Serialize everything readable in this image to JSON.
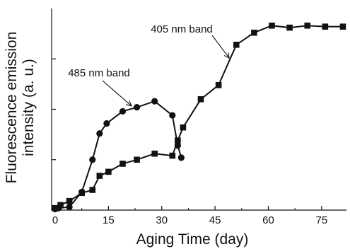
{
  "chart_data": {
    "type": "line",
    "xlabel": "Aging Time (day)",
    "ylabel": "Fluorescence emission intensity (a. u.)",
    "xlim": [
      -1,
      82
    ],
    "ylim": [
      0,
      1
    ],
    "xticks": [
      0,
      15,
      30,
      45,
      60,
      75
    ],
    "y_tick_labels_shown": false,
    "grid": false,
    "series": [
      {
        "name": "485 nm band",
        "marker": "circle",
        "x": [
          0,
          1,
          4,
          7.5,
          10.5,
          12.5,
          14.5,
          19,
          23,
          28,
          33,
          34.5,
          35.5
        ],
        "y": [
          0.005,
          0.01,
          0.015,
          0.09,
          0.25,
          0.38,
          0.43,
          0.49,
          0.51,
          0.54,
          0.47,
          0.32,
          0.26
        ]
      },
      {
        "name": "405 nm band",
        "marker": "square",
        "x": [
          0,
          1.5,
          4,
          7.5,
          10.5,
          12.5,
          15,
          19,
          23,
          28,
          33,
          34.5,
          36,
          41,
          46,
          51,
          56,
          61,
          66,
          71,
          76,
          81
        ],
        "y": [
          0.01,
          0.025,
          0.045,
          0.085,
          0.1,
          0.17,
          0.19,
          0.23,
          0.25,
          0.28,
          0.27,
          0.345,
          0.41,
          0.55,
          0.62,
          0.82,
          0.88,
          0.915,
          0.905,
          0.915,
          0.91,
          0.91
        ]
      }
    ],
    "annotations": [
      {
        "text": "485 nm band",
        "target_series": 0,
        "target_x": 21.5
      },
      {
        "text": "405 nm band",
        "target_series": 1,
        "target_x": 49
      }
    ]
  }
}
